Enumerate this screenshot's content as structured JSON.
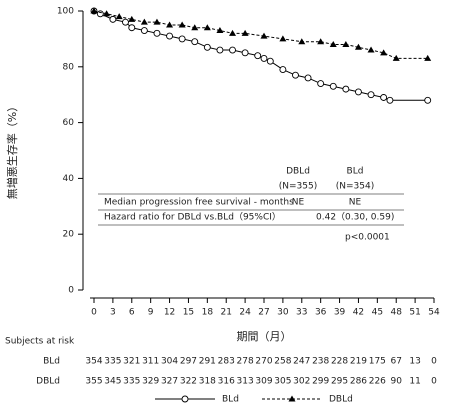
{
  "chart_data": {
    "type": "line",
    "y_label": "無増悪生存率（%）",
    "x_label": "期間（月）",
    "xlim": [
      0,
      54
    ],
    "ylim": [
      0,
      100
    ],
    "xticks": [
      0,
      3,
      6,
      9,
      12,
      15,
      18,
      21,
      24,
      27,
      30,
      33,
      36,
      39,
      42,
      45,
      48,
      51,
      54
    ],
    "yticks": [
      0,
      20,
      40,
      60,
      80,
      100
    ],
    "grid": false,
    "legend": "bottom",
    "series": [
      {
        "name": "BLd",
        "color": "#000000",
        "style": "solid",
        "marker": "circle",
        "x": [
          0,
          1,
          3,
          5,
          6,
          8,
          10,
          12,
          14,
          16,
          18,
          20,
          22,
          24,
          26,
          27,
          28,
          30,
          32,
          34,
          36,
          38,
          40,
          42,
          44,
          46,
          47,
          53
        ],
        "values": [
          100,
          99,
          97,
          96,
          94,
          93,
          92,
          91,
          90,
          89,
          87,
          86,
          86,
          85,
          84,
          83,
          82,
          79,
          77,
          76,
          74,
          73,
          72,
          71,
          70,
          69,
          68,
          68
        ]
      },
      {
        "name": "DBLd",
        "color": "#000000",
        "style": "dashed",
        "marker": "triangle",
        "x": [
          0,
          2,
          4,
          6,
          8,
          10,
          12,
          14,
          16,
          18,
          20,
          22,
          24,
          27,
          30,
          33,
          36,
          38,
          40,
          42,
          44,
          46,
          48,
          53
        ],
        "values": [
          100,
          99,
          98,
          97,
          96,
          96,
          95,
          95,
          94,
          94,
          93,
          92,
          92,
          91,
          90,
          89,
          89,
          88,
          88,
          87,
          86,
          85,
          83,
          83
        ]
      }
    ],
    "inset_table": {
      "columns": [
        {
          "name": "DBLd",
          "n": "(N=355)"
        },
        {
          "name": "BLd",
          "n": "(N=354)"
        }
      ],
      "median_row": {
        "label": "Median progression free survival - months",
        "cells": [
          "NE",
          "NE"
        ]
      },
      "hr_row": {
        "label": "Hazard ratio for DBLd vs.BLd（95%CI）",
        "value": "0.42（0.30, 0.59)"
      },
      "p_value": "p<0.0001"
    },
    "risk_table": {
      "title": "Subjects at risk",
      "rows": [
        {
          "label": "BLd",
          "values": [
            354,
            335,
            321,
            311,
            304,
            297,
            291,
            283,
            278,
            270,
            258,
            247,
            238,
            228,
            219,
            175,
            67,
            13,
            0
          ]
        },
        {
          "label": "DBLd",
          "values": [
            355,
            345,
            335,
            329,
            327,
            322,
            318,
            316,
            313,
            309,
            305,
            302,
            299,
            295,
            286,
            226,
            90,
            11,
            0
          ]
        }
      ]
    }
  }
}
